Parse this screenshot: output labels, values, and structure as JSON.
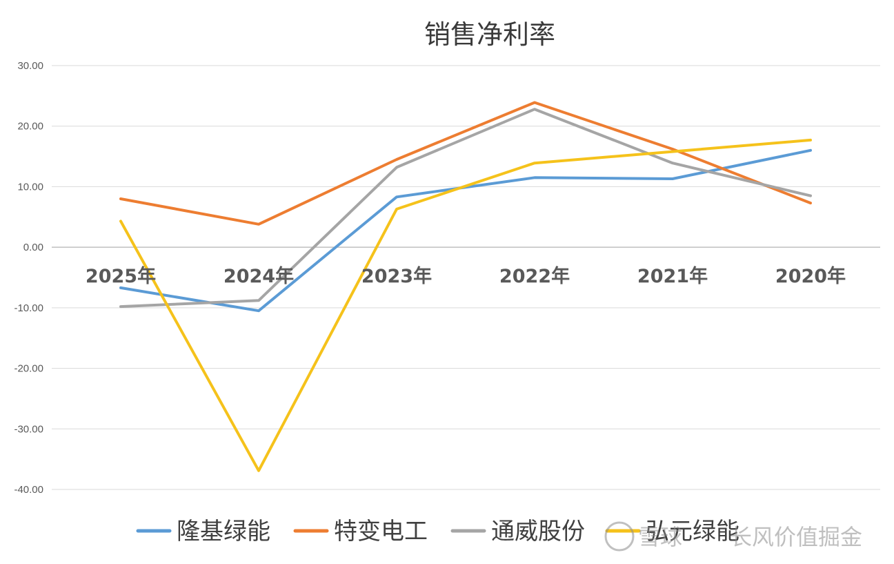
{
  "chart_data": {
    "type": "line",
    "title": "销售净利率",
    "categories": [
      "2025年",
      "2024年",
      "2023年",
      "2022年",
      "2021年",
      "2020年"
    ],
    "ylim": [
      -40,
      30
    ],
    "yticks": [
      30,
      20,
      10,
      0,
      -10,
      -20,
      -30,
      -40
    ],
    "ytick_labels": [
      "30.00",
      "20.00",
      "10.00",
      "0.00",
      "-10.00",
      "-20.00",
      "-30.00",
      "-40.00"
    ],
    "grid": true,
    "legend_position": "bottom",
    "series": [
      {
        "name": "隆基绿能",
        "color": "#5b9bd5",
        "values": [
          -6.7,
          -10.5,
          8.3,
          11.5,
          11.3,
          16.0
        ]
      },
      {
        "name": "特变电工",
        "color": "#ed7d31",
        "values": [
          8.0,
          3.8,
          14.5,
          23.9,
          16.2,
          7.3
        ]
      },
      {
        "name": "通威股份",
        "color": "#a5a5a5",
        "values": [
          -9.8,
          -8.8,
          13.2,
          22.8,
          13.9,
          8.5
        ]
      },
      {
        "name": "弘元绿能",
        "color": "#f5c21b",
        "values": [
          4.3,
          -36.9,
          6.3,
          13.9,
          15.8,
          17.7
        ]
      }
    ]
  },
  "watermark": {
    "brand": "雪球",
    "author": "长风价值掘金"
  }
}
